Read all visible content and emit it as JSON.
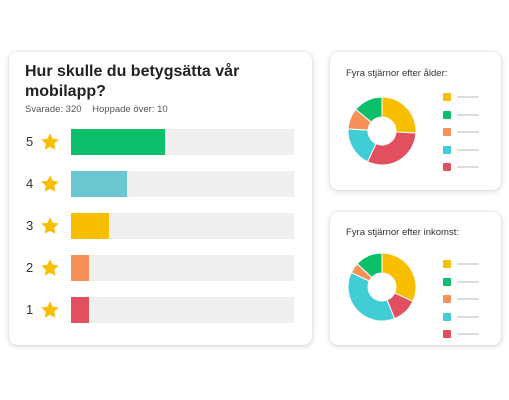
{
  "survey": {
    "question": "Hur skulle du betygsätta vår mobilapp?",
    "answered": "Svarade: 320",
    "skipped": "Hoppade över: 10",
    "ratings": [
      {
        "label": "5",
        "fraction": 0.42,
        "color": "#0cbf6b"
      },
      {
        "label": "4",
        "fraction": 0.25,
        "color": "#6ac7cf"
      },
      {
        "label": "3",
        "fraction": 0.17,
        "color": "#f8be00"
      },
      {
        "label": "2",
        "fraction": 0.08,
        "color": "#f89157"
      },
      {
        "label": "1",
        "fraction": 0.08,
        "color": "#e0505e"
      }
    ]
  },
  "age_chart": {
    "title": "Fyra stjärnor efter ålder:",
    "segments": [
      {
        "color": "#f8be00",
        "value": 26
      },
      {
        "color": "#e0505e",
        "value": 31
      },
      {
        "color": "#41cdd6",
        "value": 19
      },
      {
        "color": "#f89157",
        "value": 10
      },
      {
        "color": "#0cbf6b",
        "value": 14
      }
    ]
  },
  "income_chart": {
    "title": "Fyra stjärnor efter inkomst:",
    "segments": [
      {
        "color": "#f8be00",
        "value": 32
      },
      {
        "color": "#e0505e",
        "value": 12
      },
      {
        "color": "#41cdd6",
        "value": 38
      },
      {
        "color": "#f89157",
        "value": 5
      },
      {
        "color": "#0cbf6b",
        "value": 13
      }
    ]
  },
  "legend_colors": [
    "#f8be00",
    "#0cbf6b",
    "#f89157",
    "#41cdd6",
    "#e0505e"
  ],
  "icons": {
    "rating": "star-icon"
  }
}
